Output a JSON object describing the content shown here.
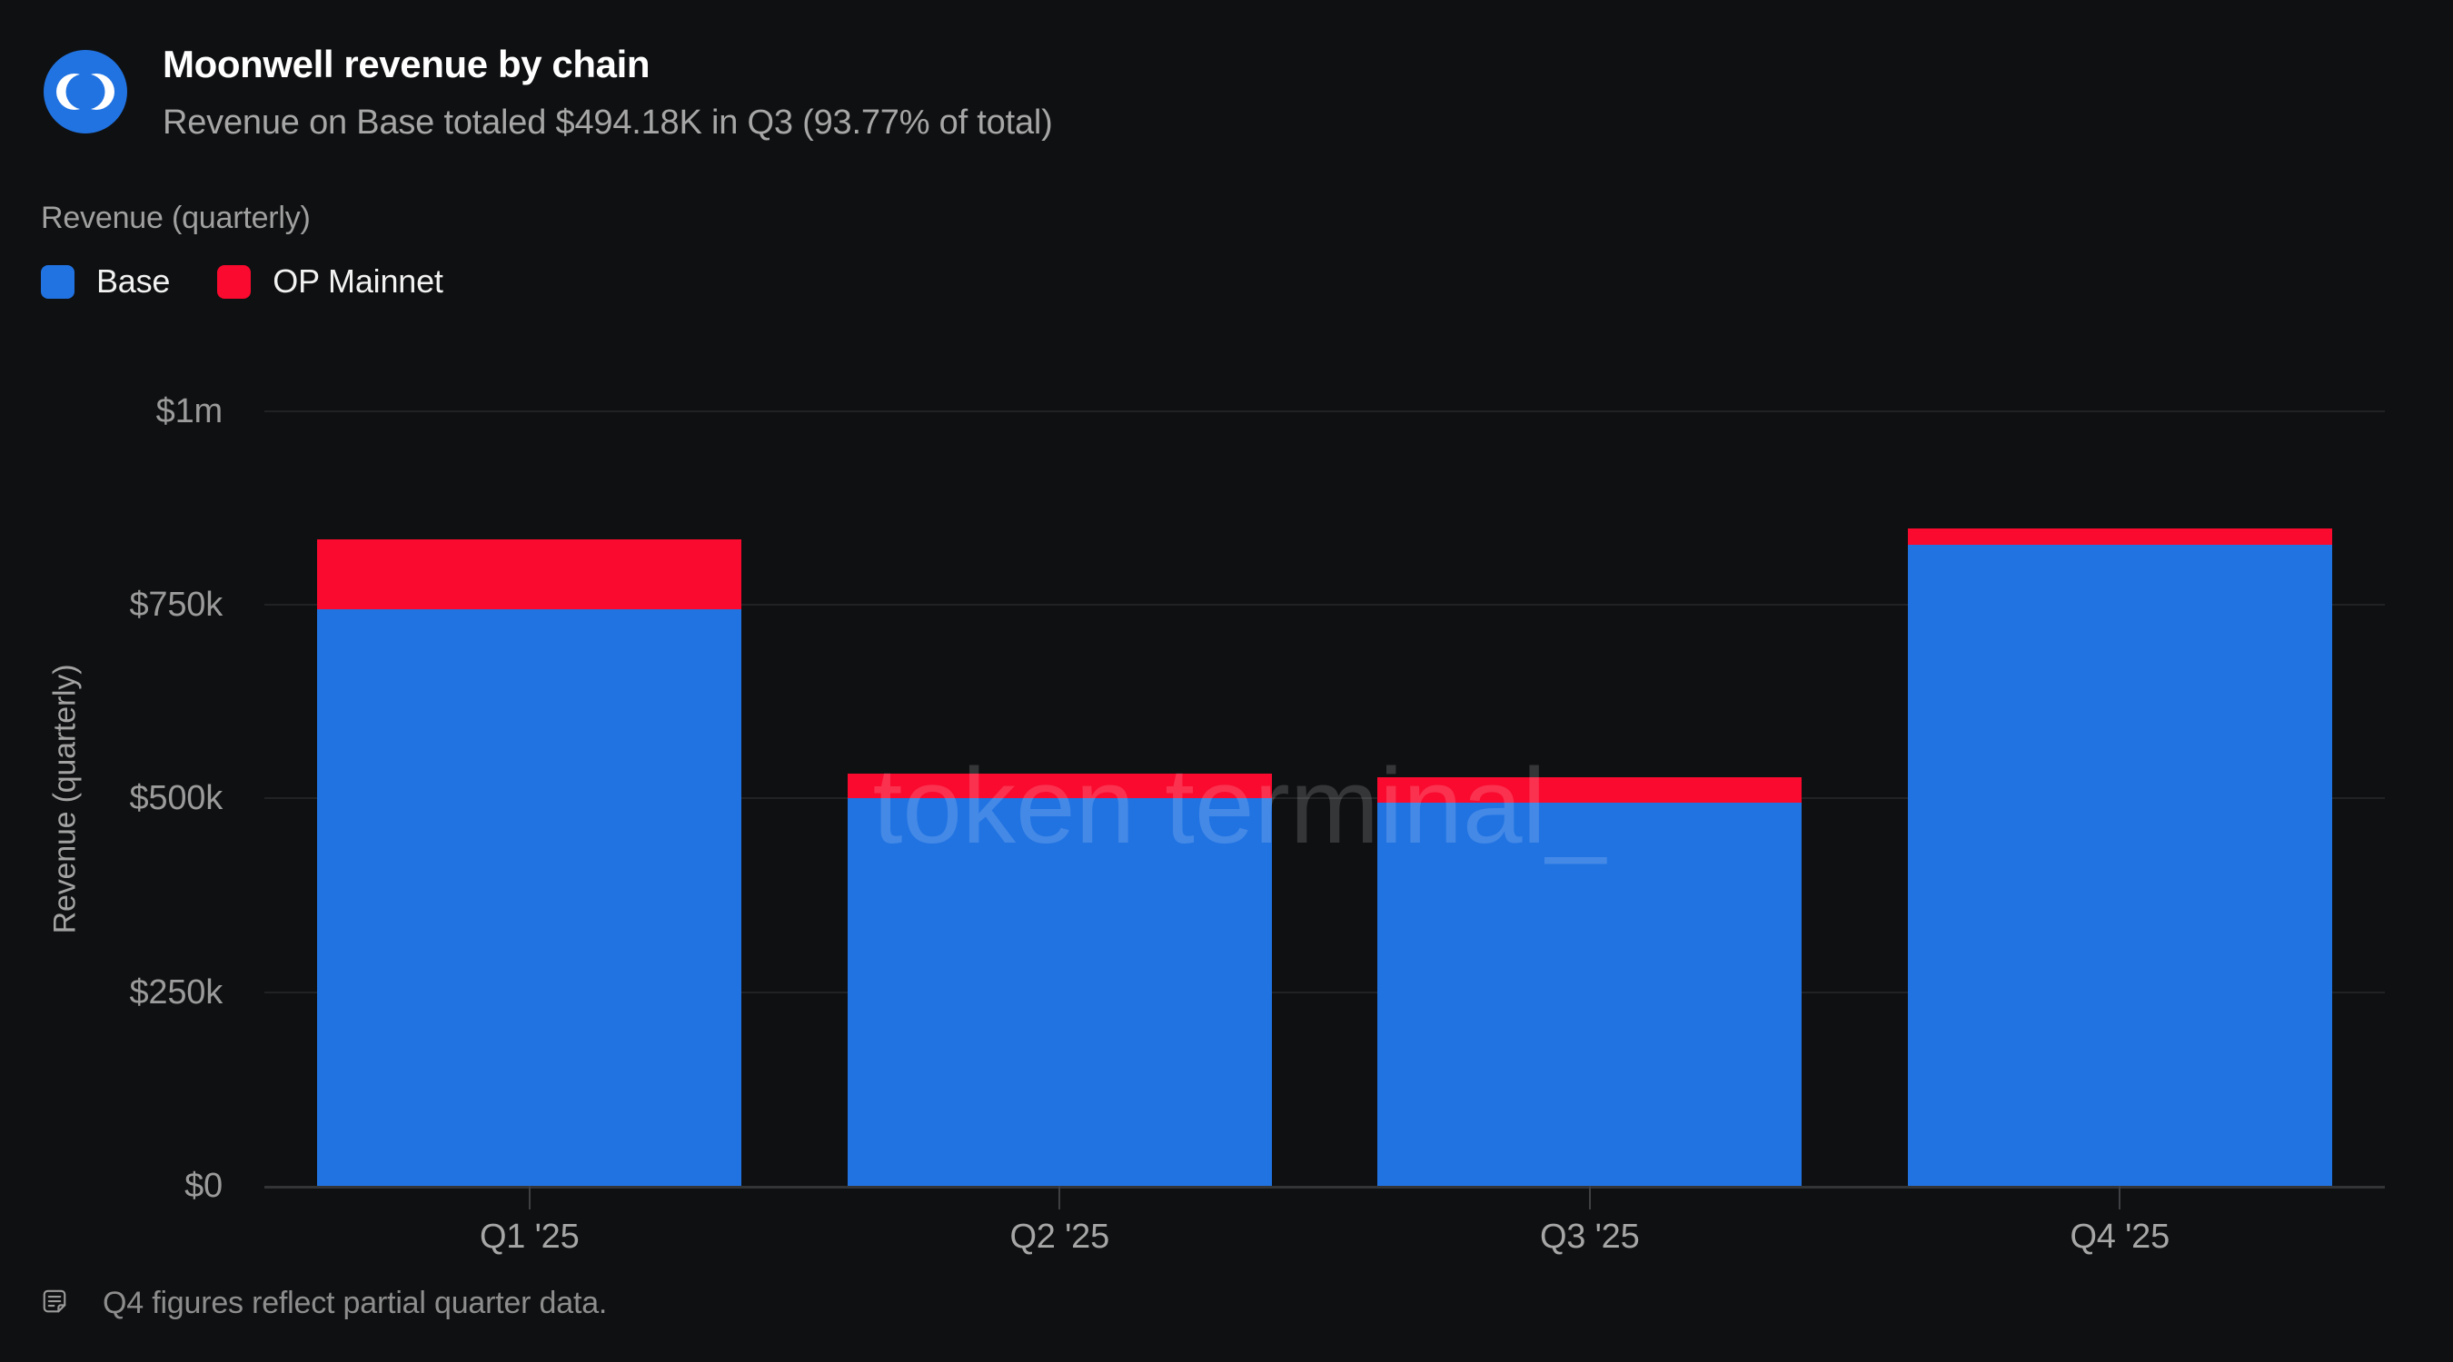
{
  "header": {
    "title": "Moonwell revenue by chain",
    "subtitle": "Revenue on Base totaled $494.18K in Q3 (93.77% of total)"
  },
  "legend": {
    "title": "Revenue (quarterly)",
    "items": [
      {
        "label": "Base",
        "color": "#2173e2"
      },
      {
        "label": "OP Mainnet",
        "color": "#f90a2e"
      }
    ]
  },
  "watermark": "token terminal_",
  "footer": {
    "note": "Q4 figures reflect partial quarter data."
  },
  "colors": {
    "background": "#0f1011",
    "gridline": "#202224",
    "axis_line": "#323436",
    "base_blue": "#2173e2",
    "op_red": "#f90a2e"
  },
  "chart_data": {
    "type": "bar",
    "stacked": true,
    "title": "Moonwell revenue by chain",
    "categories": [
      "Q1 '25",
      "Q2 '25",
      "Q3 '25",
      "Q4 '25"
    ],
    "series": [
      {
        "name": "Base",
        "color": "#2173e2",
        "values": [
          744000,
          500000,
          494180,
          828000
        ]
      },
      {
        "name": "OP Mainnet",
        "color": "#f90a2e",
        "values": [
          91000,
          32000,
          32860,
          20000
        ]
      }
    ],
    "xlabel": "",
    "ylabel": "Revenue (quarterly)",
    "ylim": [
      0,
      1000000
    ],
    "y_tick_values": [
      0,
      250000,
      500000,
      750000,
      1000000
    ],
    "y_tick_labels": [
      "$0",
      "$250k",
      "$500k",
      "$750k",
      "$1m"
    ],
    "grid": true,
    "legend_position": "top-left",
    "note": "Q4 figures reflect partial quarter data."
  }
}
